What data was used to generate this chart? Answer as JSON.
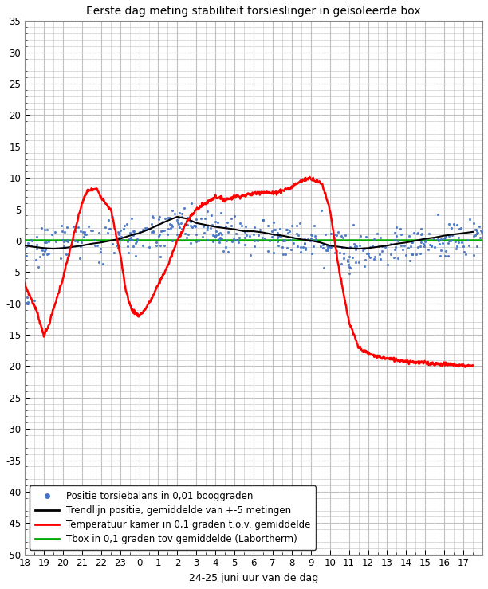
{
  "title": "Eerste dag meting stabiliteit torsieslinger in geïsoleerde box",
  "xlabel": "24-25 juni uur van de dag",
  "ylim": [
    -50,
    35
  ],
  "yticks": [
    -50,
    -45,
    -40,
    -35,
    -30,
    -25,
    -20,
    -15,
    -10,
    -5,
    0,
    5,
    10,
    15,
    20,
    25,
    30,
    35
  ],
  "xtick_labels": [
    "18",
    "19",
    "20",
    "21",
    "22",
    "23",
    "0",
    "1",
    "2",
    "3",
    "4",
    "5",
    "6",
    "7",
    "8",
    "9",
    "10",
    "11",
    "12",
    "13",
    "14",
    "15",
    "16",
    "17"
  ],
  "bg_color": "#ffffff",
  "grid_color": "#c0c0c0",
  "scatter_color": "#4472C4",
  "trend_color": "#000000",
  "temp_color": "#FF0000",
  "tbox_color": "#00AA00",
  "legend_labels": [
    "Positie torsiebalans in 0,01 booggraden",
    "Trendlijn positie, gemiddelde van +-5 metingen",
    "Temperatuur kamer in 0,1 graden t.o.v. gemiddelde",
    "Tbox in 0,1 graden tov gemiddelde (Labortherm)"
  ],
  "temp_x": [
    0,
    0.3,
    0.6,
    0.9,
    1.0,
    1.2,
    1.5,
    2.0,
    2.5,
    3.0,
    3.3,
    3.8,
    4.0,
    4.5,
    5.0,
    5.3,
    5.6,
    6.0,
    6.3,
    6.7,
    7.0,
    7.5,
    8.0,
    8.5,
    9.0,
    9.5,
    10.0,
    10.5,
    11.0,
    11.5,
    12.0,
    12.5,
    13.0,
    13.5,
    14.0,
    14.2,
    14.5,
    14.7,
    15.0,
    15.3,
    15.6,
    16.0,
    16.5,
    17.0,
    17.5,
    18.0,
    18.5,
    19.0,
    19.5,
    20.0,
    20.3,
    20.6,
    21.0,
    21.5,
    22.0,
    22.5,
    23.0,
    23.5
  ],
  "temp_y": [
    -7,
    -9,
    -11,
    -14,
    -15,
    -14,
    -11,
    -6,
    0,
    6,
    8,
    8.2,
    7,
    5,
    -2,
    -8,
    -11,
    -12,
    -11,
    -9,
    -7,
    -4,
    0,
    3,
    5,
    6,
    7,
    6.5,
    7,
    7.2,
    7.5,
    7.8,
    7.5,
    8,
    8.5,
    9,
    9.5,
    9.8,
    10,
    9.5,
    9,
    5,
    -5,
    -13,
    -17,
    -18,
    -18.5,
    -18.8,
    -19,
    -19.2,
    -19.3,
    -19.4,
    -19.5,
    -19.6,
    -19.7,
    -19.8,
    -19.9,
    -20.0
  ],
  "trend_x": [
    0,
    0.5,
    1.0,
    1.5,
    2.0,
    2.5,
    3.0,
    3.5,
    4.0,
    4.5,
    5.0,
    5.5,
    6.0,
    6.5,
    7.0,
    7.5,
    8.0,
    8.5,
    9.0,
    9.5,
    10.0,
    10.5,
    11.0,
    11.5,
    12.0,
    12.5,
    13.0,
    13.5,
    14.0,
    14.5,
    15.0,
    15.5,
    16.0,
    16.5,
    17.0,
    17.5,
    18.0,
    18.5,
    19.0,
    19.5,
    20.0,
    20.5,
    21.0,
    21.5,
    22.0,
    22.5,
    23.0,
    23.5
  ],
  "trend_y": [
    -0.8,
    -1.0,
    -1.2,
    -1.3,
    -1.2,
    -1.0,
    -0.8,
    -0.5,
    -0.3,
    0.0,
    0.3,
    0.8,
    1.2,
    1.8,
    2.5,
    3.2,
    3.8,
    3.5,
    2.8,
    2.5,
    2.2,
    2.0,
    1.8,
    1.5,
    1.5,
    1.3,
    1.0,
    0.8,
    0.5,
    0.2,
    0.0,
    -0.3,
    -0.8,
    -1.0,
    -1.2,
    -1.3,
    -1.2,
    -1.0,
    -0.8,
    -0.5,
    -0.3,
    0.0,
    0.3,
    0.5,
    0.8,
    1.0,
    1.2,
    1.4
  ],
  "scatter_seed": 123,
  "n_scatter": 500
}
